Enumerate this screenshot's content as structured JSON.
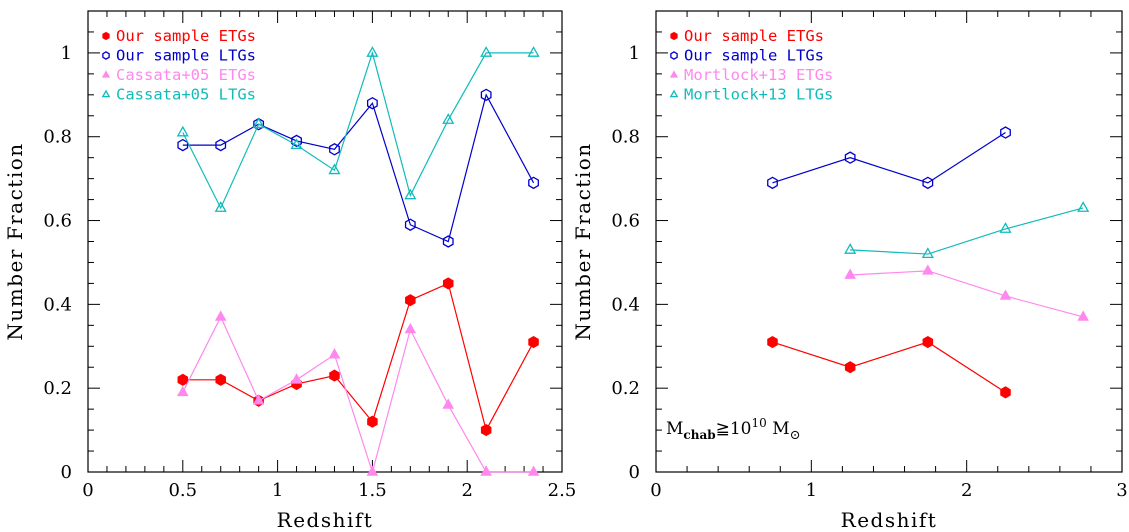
{
  "chart_data": [
    {
      "type": "line",
      "xlabel": "Redshift",
      "ylabel": "Number Fraction",
      "xlim": [
        0,
        2.5
      ],
      "ylim": [
        0,
        1.1
      ],
      "xticks": [
        0,
        0.5,
        1,
        1.5,
        2,
        2.5
      ],
      "yticks": [
        0,
        0.2,
        0.4,
        0.6,
        0.8,
        1
      ],
      "xtick_labels": [
        "0",
        "0.5",
        "1",
        "1.5",
        "2",
        "2.5"
      ],
      "ytick_labels": [
        "0",
        "0.2",
        "0.4",
        "0.6",
        "0.8",
        "1"
      ],
      "legend_position": "top-left",
      "series": [
        {
          "name": "Our sample ETGs",
          "color": "#ff0000",
          "marker": "filled-hexagon",
          "x": [
            0.5,
            0.7,
            0.9,
            1.1,
            1.3,
            1.5,
            1.7,
            1.9,
            2.1,
            2.35
          ],
          "values": [
            0.22,
            0.22,
            0.17,
            0.21,
            0.23,
            0.12,
            0.41,
            0.45,
            0.1,
            0.31
          ]
        },
        {
          "name": "Our sample LTGs",
          "color": "#0000cc",
          "marker": "open-hexagon",
          "x": [
            0.5,
            0.7,
            0.9,
            1.1,
            1.3,
            1.5,
            1.7,
            1.9,
            2.1,
            2.35
          ],
          "values": [
            0.78,
            0.78,
            0.83,
            0.79,
            0.77,
            0.88,
            0.59,
            0.55,
            0.9,
            0.69
          ]
        },
        {
          "name": "Cassata+05 ETGs",
          "color": "#ff88ee",
          "marker": "filled-triangle",
          "x": [
            0.5,
            0.7,
            0.9,
            1.1,
            1.3,
            1.5,
            1.7,
            1.9,
            2.1,
            2.35
          ],
          "values": [
            0.19,
            0.37,
            0.17,
            0.22,
            0.28,
            0.0,
            0.34,
            0.16,
            0.0,
            0.0
          ]
        },
        {
          "name": "Cassata+05 LTGs",
          "color": "#11bbbb",
          "marker": "open-triangle",
          "x": [
            0.5,
            0.7,
            0.9,
            1.1,
            1.3,
            1.5,
            1.7,
            1.9,
            2.1,
            2.35
          ],
          "values": [
            0.81,
            0.63,
            0.83,
            0.78,
            0.72,
            1.0,
            0.66,
            0.84,
            1.0,
            1.0
          ]
        }
      ]
    },
    {
      "type": "line",
      "xlabel": "Redshift",
      "ylabel": "Number Fraction",
      "xlim": [
        0,
        3
      ],
      "ylim": [
        0,
        1.1
      ],
      "xticks": [
        0,
        1,
        2,
        3
      ],
      "yticks": [
        0,
        0.2,
        0.4,
        0.6,
        0.8,
        1
      ],
      "xtick_labels": [
        "0",
        "1",
        "2",
        "3"
      ],
      "ytick_labels": [
        "0",
        "0.2",
        "0.4",
        "0.6",
        "0.8",
        "1"
      ],
      "legend_position": "top-left",
      "annotation": {
        "base": "M",
        "sub": "chab",
        "rel": "≧10",
        "sup": "10",
        "unit": " M",
        "unit_sub": "⊙"
      },
      "series": [
        {
          "name": "Our sample ETGs",
          "color": "#ff0000",
          "marker": "filled-hexagon",
          "x": [
            0.75,
            1.25,
            1.75,
            2.25
          ],
          "values": [
            0.31,
            0.25,
            0.31,
            0.19
          ]
        },
        {
          "name": "Our sample LTGs",
          "color": "#0000cc",
          "marker": "open-hexagon",
          "x": [
            0.75,
            1.25,
            1.75,
            2.25
          ],
          "values": [
            0.69,
            0.75,
            0.69,
            0.81
          ]
        },
        {
          "name": "Mortlock+13 ETGs",
          "color": "#ff88ee",
          "marker": "filled-triangle",
          "x": [
            1.25,
            1.75,
            2.25,
            2.75
          ],
          "values": [
            0.47,
            0.48,
            0.42,
            0.37
          ]
        },
        {
          "name": "Mortlock+13 LTGs",
          "color": "#11bbbb",
          "marker": "open-triangle",
          "x": [
            1.25,
            1.75,
            2.25,
            2.75
          ],
          "values": [
            0.53,
            0.52,
            0.58,
            0.63
          ]
        }
      ]
    }
  ]
}
